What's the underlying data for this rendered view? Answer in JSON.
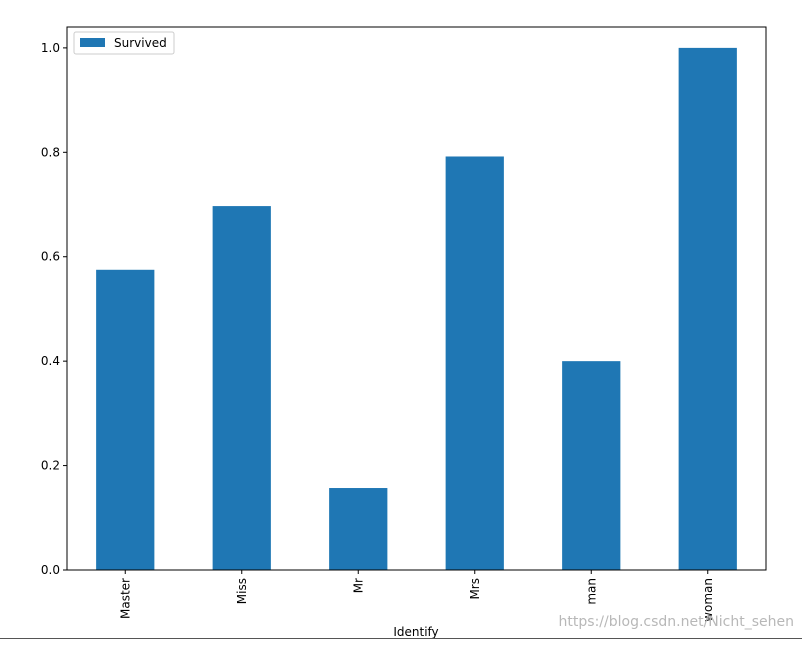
{
  "chart_data": {
    "type": "bar",
    "categories": [
      "Master",
      "Miss",
      "Mr",
      "Mrs",
      "man",
      "woman"
    ],
    "series": [
      {
        "name": "Survived",
        "values": [
          0.575,
          0.697,
          0.157,
          0.792,
          0.4,
          1.0
        ],
        "color": "#1f77b4"
      }
    ],
    "xlabel": "Identify",
    "ylabel": "",
    "ylim": [
      0.0,
      1.04
    ],
    "yticks": [
      "0.0",
      "0.2",
      "0.4",
      "0.6",
      "0.8",
      "1.0"
    ],
    "grid": false,
    "legend_placement": "top-left"
  },
  "watermark": "https://blog.csdn.net/Nicht_sehen"
}
